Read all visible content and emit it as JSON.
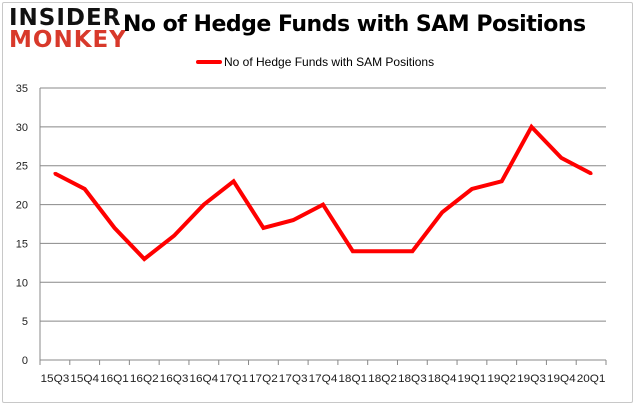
{
  "logo": {
    "line1": "INSIDER",
    "line2": "MONKEY"
  },
  "chart_data": {
    "type": "line",
    "title": "No of Hedge Funds with SAM Positions",
    "xlabel": "",
    "ylabel": "",
    "categories": [
      "15Q3",
      "15Q4",
      "16Q1",
      "16Q2",
      "16Q3",
      "16Q4",
      "17Q1",
      "17Q2",
      "17Q3",
      "17Q4",
      "18Q1",
      "18Q2",
      "18Q3",
      "18Q4",
      "19Q1",
      "19Q2",
      "19Q3",
      "19Q4",
      "20Q1"
    ],
    "series": [
      {
        "name": "No of Hedge Funds with SAM Positions",
        "color": "#ff0000",
        "values": [
          24,
          22,
          17,
          13,
          16,
          20,
          23,
          17,
          18,
          20,
          14,
          14,
          14,
          19,
          22,
          23,
          30,
          26,
          24
        ]
      }
    ],
    "ylim": [
      0,
      35
    ],
    "yticks": [
      0,
      5,
      10,
      15,
      20,
      25,
      30,
      35
    ],
    "grid": true,
    "legend": "top-center"
  }
}
